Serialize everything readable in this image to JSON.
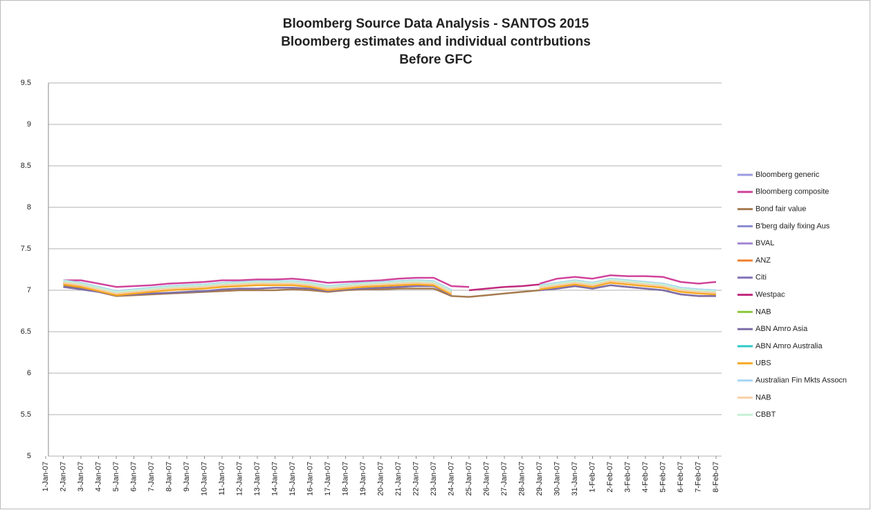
{
  "chart_data": {
    "type": "line",
    "title": [
      "Bloomberg Source Data Analysis - SANTOS 2015",
      "Bloomberg estimates and individual contrbutions",
      "Before GFC"
    ],
    "categories": [
      "1-Jan-07",
      "2-Jan-07",
      "3-Jan-07",
      "4-Jan-07",
      "5-Jan-07",
      "6-Jan-07",
      "7-Jan-07",
      "8-Jan-07",
      "9-Jan-07",
      "10-Jan-07",
      "11-Jan-07",
      "12-Jan-07",
      "13-Jan-07",
      "14-Jan-07",
      "15-Jan-07",
      "16-Jan-07",
      "17-Jan-07",
      "18-Jan-07",
      "19-Jan-07",
      "20-Jan-07",
      "21-Jan-07",
      "22-Jan-07",
      "23-Jan-07",
      "24-Jan-07",
      "25-Jan-07",
      "26-Jan-07",
      "27-Jan-07",
      "28-Jan-07",
      "29-Jan-07",
      "30-Jan-07",
      "31-Jan-07",
      "1-Feb-07",
      "2-Feb-07",
      "3-Feb-07",
      "4-Feb-07",
      "5-Feb-07",
      "6-Feb-07",
      "7-Feb-07",
      "8-Feb-07"
    ],
    "ylim": [
      5,
      9.5
    ],
    "yticks": [
      5,
      5.5,
      6,
      6.5,
      7,
      7.5,
      8,
      8.5,
      9,
      9.5
    ],
    "grid": true,
    "legend": "right",
    "series": [
      {
        "name": "Bloomberg generic",
        "color": "#9b9be0",
        "values": [
          null,
          7.12,
          7.09,
          7.04,
          6.99,
          7.01,
          7.03,
          7.05,
          7.06,
          7.07,
          7.09,
          7.1,
          7.11,
          7.11,
          7.11,
          7.09,
          7.05,
          7.07,
          7.09,
          7.1,
          7.11,
          7.12,
          7.11,
          7.0,
          null,
          null,
          null,
          null,
          7.06,
          7.09,
          7.12,
          7.09,
          7.14,
          7.12,
          7.1,
          7.08,
          7.03,
          7.01,
          7.0
        ]
      },
      {
        "name": "Bloomberg composite",
        "color": "#d0439a",
        "values": [
          null,
          7.12,
          7.12,
          7.08,
          7.04,
          7.05,
          7.06,
          7.08,
          7.09,
          7.1,
          7.12,
          7.12,
          7.13,
          7.13,
          7.14,
          7.12,
          7.09,
          7.1,
          7.11,
          7.12,
          7.14,
          7.15,
          7.15,
          7.05,
          7.04,
          null,
          null,
          null,
          7.08,
          7.14,
          7.16,
          7.14,
          7.18,
          7.17,
          7.17,
          7.16,
          7.1,
          7.08,
          7.1
        ]
      },
      {
        "name": "Bond fair value",
        "color": "#a57b4f",
        "values": [
          null,
          7.05,
          7.02,
          6.98,
          6.93,
          6.94,
          6.95,
          6.96,
          6.97,
          6.98,
          6.99,
          7.0,
          7.0,
          7.0,
          7.01,
          7.0,
          6.98,
          7.0,
          7.01,
          7.01,
          7.02,
          7.02,
          7.02,
          6.93,
          6.92,
          6.94,
          6.96,
          6.98,
          7.0,
          7.02,
          7.05,
          7.02,
          7.06,
          7.04,
          7.02,
          7.0,
          6.95,
          6.93,
          6.93
        ]
      },
      {
        "name": "B'berg daily fixing Aus",
        "color": "#8a8ad0",
        "values": [
          null,
          7.1,
          7.07,
          7.02,
          6.97,
          6.99,
          7.01,
          7.03,
          7.04,
          7.05,
          7.07,
          7.08,
          7.09,
          7.09,
          7.09,
          7.07,
          7.03,
          7.05,
          7.07,
          7.08,
          7.09,
          7.1,
          7.09,
          6.98,
          null,
          null,
          null,
          null,
          7.04,
          7.07,
          7.1,
          7.07,
          7.12,
          7.1,
          7.08,
          7.06,
          7.01,
          6.99,
          6.98
        ]
      },
      {
        "name": "BVAL",
        "color": "#a287d2",
        "values": [
          null,
          7.09,
          7.06,
          7.01,
          6.96,
          6.98,
          7.0,
          7.02,
          7.03,
          7.04,
          7.06,
          7.07,
          7.08,
          7.08,
          7.08,
          7.06,
          7.02,
          7.04,
          7.06,
          7.07,
          7.08,
          7.09,
          7.08,
          6.97,
          null,
          null,
          null,
          null,
          7.03,
          7.06,
          7.09,
          7.06,
          7.11,
          7.09,
          7.07,
          7.05,
          7.0,
          6.98,
          6.97
        ]
      },
      {
        "name": "ANZ",
        "color": "#f0802c",
        "values": [
          null,
          7.08,
          7.05,
          7.0,
          6.95,
          6.97,
          6.99,
          7.01,
          7.02,
          7.03,
          7.05,
          7.06,
          7.07,
          7.07,
          7.07,
          7.05,
          7.01,
          7.03,
          7.05,
          7.06,
          7.07,
          7.08,
          7.07,
          6.96,
          null,
          null,
          null,
          null,
          7.02,
          7.05,
          7.08,
          7.05,
          7.1,
          7.08,
          7.06,
          7.04,
          6.99,
          6.97,
          6.96
        ]
      },
      {
        "name": "Citi",
        "color": "#8272b8",
        "values": [
          null,
          7.09,
          7.06,
          7.01,
          6.96,
          6.98,
          7.0,
          7.02,
          7.03,
          7.04,
          7.06,
          7.07,
          7.08,
          7.08,
          7.08,
          7.06,
          7.02,
          7.04,
          7.06,
          7.07,
          7.08,
          7.09,
          7.08,
          6.97,
          null,
          null,
          null,
          null,
          7.03,
          7.06,
          7.09,
          7.06,
          7.11,
          7.09,
          7.07,
          7.05,
          7.0,
          6.98,
          6.97
        ]
      },
      {
        "name": "Westpac",
        "color": "#c0287c",
        "values": [
          null,
          null,
          null,
          null,
          null,
          null,
          null,
          null,
          null,
          null,
          null,
          null,
          null,
          null,
          null,
          null,
          null,
          null,
          null,
          null,
          null,
          null,
          null,
          null,
          7.0,
          7.02,
          7.04,
          7.05,
          7.07,
          null,
          null,
          null,
          null,
          null,
          null,
          null,
          null,
          null,
          null
        ]
      },
      {
        "name": "NAB",
        "color": "#8cc83c",
        "values": [
          null,
          7.11,
          7.08,
          7.03,
          6.98,
          7.0,
          7.02,
          7.04,
          7.05,
          7.06,
          7.08,
          7.09,
          7.1,
          7.1,
          7.1,
          7.08,
          7.04,
          7.06,
          7.08,
          7.09,
          7.1,
          7.11,
          7.1,
          6.99,
          null,
          null,
          null,
          null,
          7.05,
          7.08,
          7.11,
          7.08,
          7.13,
          7.11,
          7.09,
          7.07,
          7.02,
          7.0,
          6.99
        ]
      },
      {
        "name": "ABN Amro Asia",
        "color": "#7d6da8",
        "values": [
          null,
          7.04,
          7.01,
          6.98,
          6.94,
          6.95,
          6.96,
          6.97,
          6.98,
          6.99,
          7.01,
          7.02,
          7.02,
          7.03,
          7.03,
          7.02,
          6.99,
          7.01,
          7.02,
          7.03,
          7.04,
          7.05,
          7.05,
          6.94,
          null,
          null,
          null,
          null,
          7.0,
          7.02,
          7.05,
          7.02,
          7.06,
          7.04,
          7.02,
          7.0,
          6.95,
          6.93,
          6.93
        ]
      },
      {
        "name": "ABN Amro Australia",
        "color": "#2ec9c9",
        "values": [
          null,
          7.1,
          7.07,
          7.02,
          6.97,
          6.99,
          7.01,
          7.03,
          7.04,
          7.05,
          7.07,
          7.08,
          7.09,
          7.09,
          7.09,
          7.07,
          7.03,
          7.05,
          7.07,
          7.08,
          7.09,
          7.1,
          7.09,
          6.98,
          null,
          null,
          null,
          null,
          7.04,
          7.07,
          7.1,
          7.07,
          7.12,
          7.1,
          7.08,
          7.06,
          7.01,
          6.99,
          6.98
        ]
      },
      {
        "name": "UBS",
        "color": "#f7a823",
        "values": [
          null,
          7.07,
          7.04,
          6.99,
          6.94,
          6.96,
          6.98,
          7.0,
          7.01,
          7.02,
          7.04,
          7.05,
          7.06,
          7.06,
          7.06,
          7.04,
          7.0,
          7.02,
          7.04,
          7.05,
          7.06,
          7.07,
          7.06,
          6.95,
          null,
          null,
          null,
          null,
          7.01,
          7.04,
          7.07,
          7.04,
          7.09,
          7.07,
          7.05,
          7.03,
          6.98,
          6.96,
          6.95
        ]
      },
      {
        "name": "Australian Fin Mkts Assocn",
        "color": "#a8d6f4",
        "values": [
          null,
          7.12,
          7.09,
          7.04,
          6.99,
          7.01,
          7.03,
          7.05,
          7.06,
          7.07,
          7.09,
          7.1,
          7.11,
          7.11,
          7.11,
          7.09,
          7.05,
          7.07,
          7.09,
          7.1,
          7.11,
          7.12,
          7.11,
          7.0,
          null,
          null,
          null,
          null,
          7.06,
          7.09,
          7.12,
          7.09,
          7.14,
          7.12,
          7.1,
          7.08,
          7.03,
          7.01,
          7.0
        ]
      },
      {
        "name": "NAB",
        "color": "#f9d1a6",
        "values": [
          null,
          7.09,
          7.06,
          7.01,
          6.96,
          6.98,
          7.0,
          7.02,
          7.03,
          7.04,
          7.06,
          7.07,
          7.08,
          7.08,
          7.08,
          7.06,
          7.02,
          7.04,
          7.06,
          7.07,
          7.08,
          7.09,
          7.08,
          6.97,
          null,
          null,
          null,
          null,
          7.03,
          7.06,
          7.09,
          7.06,
          7.11,
          7.09,
          7.07,
          7.05,
          7.0,
          6.98,
          6.97
        ]
      },
      {
        "name": "CBBT",
        "color": "#c6f0d6",
        "values": [
          null,
          7.11,
          7.08,
          7.03,
          6.98,
          7.0,
          7.02,
          7.04,
          7.05,
          7.06,
          7.08,
          7.09,
          7.1,
          7.1,
          7.1,
          7.08,
          7.04,
          7.06,
          7.08,
          7.09,
          7.1,
          7.11,
          7.1,
          6.99,
          null,
          null,
          null,
          null,
          7.05,
          7.08,
          7.11,
          7.08,
          7.13,
          7.11,
          7.09,
          7.07,
          7.02,
          7.0,
          6.99
        ]
      }
    ]
  }
}
